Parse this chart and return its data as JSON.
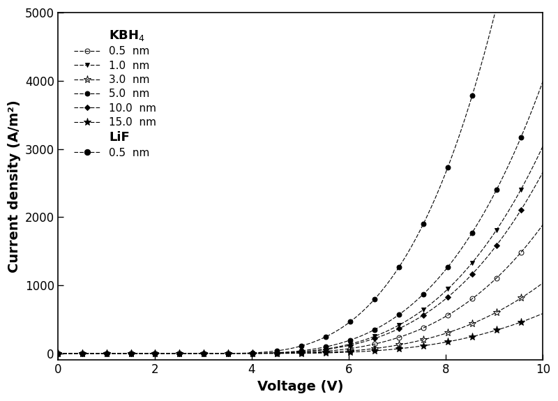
{
  "xlabel": "Voltage (V)",
  "ylabel": "Current density (A/m²)",
  "xlim": [
    0,
    10
  ],
  "ylim": [
    -100,
    5000
  ],
  "yticks": [
    0,
    1000,
    2000,
    3000,
    4000,
    5000
  ],
  "xticks": [
    0,
    2,
    4,
    6,
    8,
    10
  ],
  "curves": [
    {
      "label": "0.5  nm",
      "marker": "o",
      "filled": false,
      "A": 5.5,
      "n": 3.2,
      "V0": 3.8,
      "group": "KBH4"
    },
    {
      "label": "1.0  nm",
      "marker": "v",
      "filled": true,
      "A": 8.0,
      "n": 3.2,
      "V0": 3.6,
      "group": "KBH4"
    },
    {
      "label": "3.0  nm",
      "marker": "*",
      "filled": false,
      "A": 4.0,
      "n": 3.1,
      "V0": 4.0,
      "group": "KBH4"
    },
    {
      "label": "5.0  nm",
      "marker": "o",
      "filled": true,
      "A": 10.0,
      "n": 3.2,
      "V0": 3.5,
      "group": "KBH4"
    },
    {
      "label": "10.0  nm",
      "marker": "D",
      "filled": true,
      "A": 7.0,
      "n": 3.2,
      "V0": 3.6,
      "group": "KBH4"
    },
    {
      "label": "15.0  nm",
      "marker": "*",
      "filled": true,
      "A": 3.0,
      "n": 3.0,
      "V0": 4.2,
      "group": "KBH4"
    },
    {
      "label": "0.5  nm",
      "marker": "o",
      "filled": true,
      "A": 15.0,
      "n": 3.3,
      "V0": 3.2,
      "group": "LiF"
    }
  ],
  "n_points": 200,
  "linewidth": 0.8,
  "markevery": 10,
  "marker_sizes": {
    "o": 5,
    "v": 5,
    "*": 8,
    "D": 4
  }
}
